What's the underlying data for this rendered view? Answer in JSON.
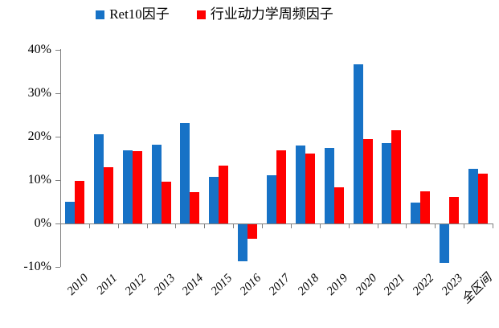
{
  "legend": {
    "items": [
      {
        "label": "Ret10因子",
        "color": "#1772C6"
      },
      {
        "label": "行业动力学周频因子",
        "color": "#FF0000"
      }
    ]
  },
  "chart_data": {
    "type": "bar",
    "title": "",
    "categories": [
      "2010",
      "2011",
      "2012",
      "2013",
      "2014",
      "2015",
      "2016",
      "2017",
      "2018",
      "2019",
      "2020",
      "2021",
      "2022",
      "2023",
      "全区间"
    ],
    "series": [
      {
        "name": "Ret10因子",
        "color": "#1772C6",
        "values": [
          5.0,
          20.5,
          16.9,
          18.1,
          23.1,
          10.7,
          -8.5,
          11.1,
          18.0,
          17.4,
          36.6,
          18.6,
          4.9,
          -8.8,
          12.5
        ]
      },
      {
        "name": "行业动力学周频因子",
        "color": "#FF0000",
        "values": [
          9.9,
          12.9,
          16.6,
          9.7,
          7.3,
          13.4,
          -3.3,
          16.9,
          16.2,
          8.4,
          19.4,
          21.4,
          7.4,
          6.2,
          11.4
        ]
      }
    ],
    "ylabel": "",
    "xlabel": "",
    "ylim": [
      -10,
      40
    ],
    "yticks": [
      40,
      30,
      20,
      10,
      0,
      -10
    ],
    "ytick_labels": [
      "40%",
      "30%",
      "20%",
      "10%",
      "0%",
      "-10%"
    ],
    "grid": false,
    "legend_position": "top-center",
    "bar_unit": "percent"
  }
}
